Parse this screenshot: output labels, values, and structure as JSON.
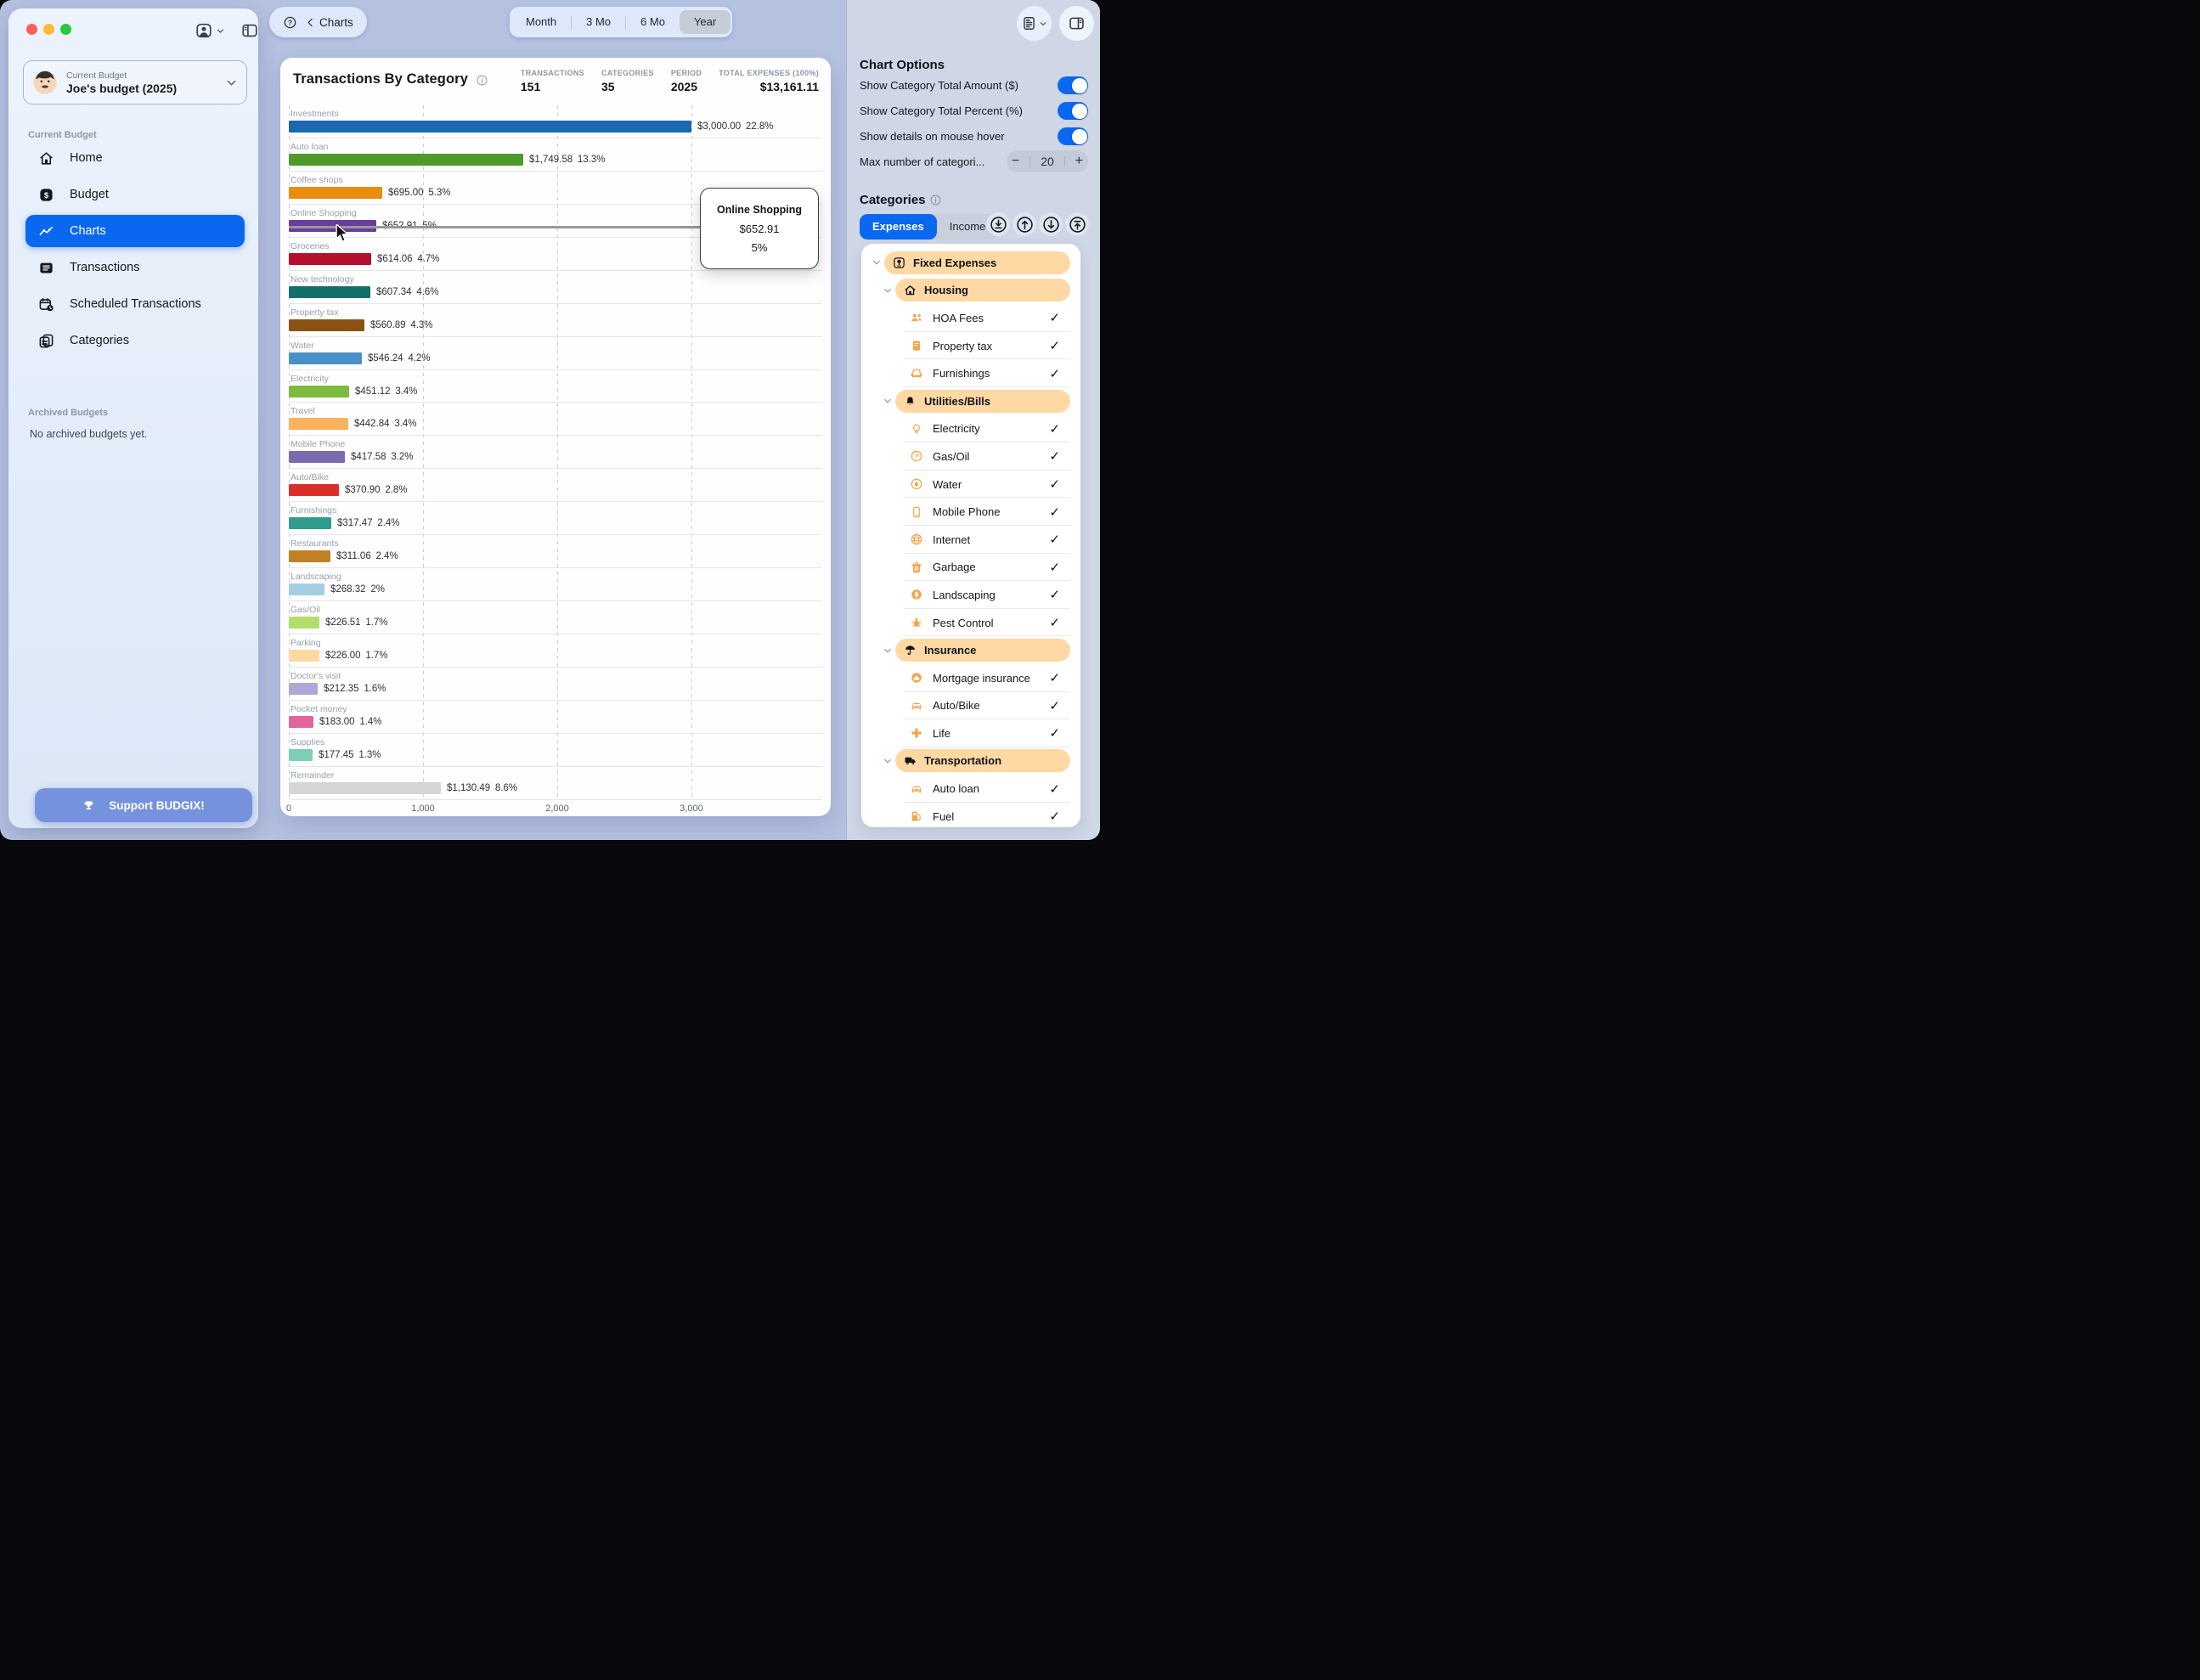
{
  "colors": {
    "accent": "#0a68f0",
    "toggle_on": "#0a68f0",
    "group_pill": "#ffd8a4",
    "leaf_icon_orange": "#f2a64d",
    "support_button": "#7492de",
    "traffic": [
      "#ff5f57",
      "#febc2e",
      "#28c840"
    ]
  },
  "sidebar": {
    "budget_card": {
      "label": "Current Budget",
      "name": "Joe's budget (2025)"
    },
    "section_label": "Current Budget",
    "nav": [
      {
        "id": "home",
        "label": "Home",
        "icon": "house",
        "active": false
      },
      {
        "id": "budget",
        "label": "Budget",
        "icon": "dollar",
        "active": false
      },
      {
        "id": "charts",
        "label": "Charts",
        "icon": "chart",
        "active": true
      },
      {
        "id": "transactions",
        "label": "Transactions",
        "icon": "list",
        "active": false
      },
      {
        "id": "scheduled-transactions",
        "label": "Scheduled Transactions",
        "icon": "calclock",
        "active": false
      },
      {
        "id": "categories",
        "label": "Categories",
        "icon": "cards",
        "active": false
      }
    ],
    "archived_label": "Archived Budgets",
    "archived_empty": "No archived budgets yet.",
    "support_label": "Support BUDGIX!"
  },
  "topbar": {
    "back_label": "Charts",
    "periods": [
      "Month",
      "3 Mo",
      "6 Mo",
      "Year"
    ],
    "selected_period": "Year"
  },
  "chart_header": {
    "title": "Transactions By Category",
    "stats": [
      {
        "label": "TRANSACTIONS",
        "value": "151"
      },
      {
        "label": "CATEGORIES",
        "value": "35"
      },
      {
        "label": "PERIOD",
        "value": "2025"
      },
      {
        "label": "TOTAL EXPENSES (100%)",
        "value": "$13,161.11"
      }
    ]
  },
  "chart_data": {
    "type": "bar",
    "orientation": "horizontal",
    "title": "Transactions By Category",
    "x_ticks": [
      "0",
      "1,000",
      "2,000",
      "3,000"
    ],
    "tick_values": [
      0,
      1000,
      2000,
      3000
    ],
    "xlim": [
      0,
      4000
    ],
    "grid": "dashed-vertical",
    "rows": [
      {
        "label": "Investments",
        "value": 3000.0,
        "amount": "$3,000.00",
        "percent": "22.8%",
        "color": "#1a68b2"
      },
      {
        "label": "Auto loan",
        "value": 1749.58,
        "amount": "$1,749.58",
        "percent": "13.3%",
        "color": "#4e9a2d"
      },
      {
        "label": "Coffee shops",
        "value": 695.0,
        "amount": "$695.00",
        "percent": "5.3%",
        "color": "#ec8c0c"
      },
      {
        "label": "Online Shopping",
        "value": 652.91,
        "amount": "$652.91",
        "percent": "5%",
        "color": "#6a3d9a"
      },
      {
        "label": "Groceries",
        "value": 614.06,
        "amount": "$614.06",
        "percent": "4.7%",
        "color": "#b5112f"
      },
      {
        "label": "New technology",
        "value": 607.34,
        "amount": "$607.34",
        "percent": "4.6%",
        "color": "#127069"
      },
      {
        "label": "Property tax",
        "value": 560.89,
        "amount": "$560.89",
        "percent": "4.3%",
        "color": "#8a5213"
      },
      {
        "label": "Water",
        "value": 546.24,
        "amount": "$546.24",
        "percent": "4.2%",
        "color": "#4a90c8"
      },
      {
        "label": "Electricity",
        "value": 451.12,
        "amount": "$451.12",
        "percent": "3.4%",
        "color": "#7cbb40"
      },
      {
        "label": "Travel",
        "value": 442.84,
        "amount": "$442.84",
        "percent": "3.4%",
        "color": "#fbb25c"
      },
      {
        "label": "Mobile Phone",
        "value": 417.58,
        "amount": "$417.58",
        "percent": "3.2%",
        "color": "#7a6ab0"
      },
      {
        "label": "Auto/Bike",
        "value": 370.9,
        "amount": "$370.90",
        "percent": "2.8%",
        "color": "#da2f29"
      },
      {
        "label": "Furnishings",
        "value": 317.47,
        "amount": "$317.47",
        "percent": "2.4%",
        "color": "#2f9c8e"
      },
      {
        "label": "Restaurants",
        "value": 311.06,
        "amount": "$311.06",
        "percent": "2.4%",
        "color": "#c08125"
      },
      {
        "label": "Landscaping",
        "value": 268.32,
        "amount": "$268.32",
        "percent": "2%",
        "color": "#a6cee3"
      },
      {
        "label": "Gas/Oil",
        "value": 226.51,
        "amount": "$226.51",
        "percent": "1.7%",
        "color": "#b2df6a"
      },
      {
        "label": "Parking",
        "value": 226.0,
        "amount": "$226.00",
        "percent": "1.7%",
        "color": "#fdd9a0"
      },
      {
        "label": "Doctor's visit",
        "value": 212.35,
        "amount": "$212.35",
        "percent": "1.6%",
        "color": "#b0a6d8"
      },
      {
        "label": "Pocket money",
        "value": 183.0,
        "amount": "$183.00",
        "percent": "1.4%",
        "color": "#e2649b"
      },
      {
        "label": "Supplies",
        "value": 177.45,
        "amount": "$177.45",
        "percent": "1.3%",
        "color": "#7ccfb6"
      },
      {
        "label": "Remainder",
        "value": 1130.49,
        "amount": "$1,130.49",
        "percent": "8.6%",
        "color": "#d5d5d5"
      }
    ],
    "hover": {
      "index": 3,
      "category": "Online Shopping",
      "amount": "$652.91",
      "percent": "5%"
    }
  },
  "right_panel": {
    "options_title": "Chart Options",
    "toggles": [
      {
        "label": "Show Category Total Amount ($)",
        "on": true
      },
      {
        "label": "Show Category Total Percent (%)",
        "on": true
      },
      {
        "label": "Show details on mouse hover",
        "on": true
      }
    ],
    "max_categories": {
      "label": "Max number of categori...",
      "value": "20"
    },
    "categories_title": "Categories",
    "tabs": [
      {
        "label": "Expenses",
        "active": true
      },
      {
        "label": "Income",
        "active": false
      }
    ],
    "tree_buttons": [
      "collapse-all",
      "move-up",
      "move-down",
      "move-to-top"
    ],
    "tree": [
      {
        "type": "group",
        "level": 1,
        "icon": "pin",
        "label": "Fixed Expenses"
      },
      {
        "type": "group",
        "level": 2,
        "icon": "housefill",
        "label": "Housing"
      },
      {
        "type": "leaf",
        "icon": "people",
        "label": "HOA Fees",
        "checked": true
      },
      {
        "type": "leaf",
        "icon": "receipt",
        "label": "Property tax",
        "checked": true
      },
      {
        "type": "leaf",
        "icon": "armchair",
        "label": "Furnishings",
        "checked": true
      },
      {
        "type": "group",
        "level": 2,
        "icon": "bell",
        "label": "Utilities/Bills"
      },
      {
        "type": "leaf",
        "icon": "bulb",
        "label": "Electricity",
        "checked": true
      },
      {
        "type": "leaf",
        "icon": "gauge",
        "label": "Gas/Oil",
        "checked": true
      },
      {
        "type": "leaf",
        "icon": "droplet",
        "label": "Water",
        "checked": true
      },
      {
        "type": "leaf",
        "icon": "phone",
        "label": "Mobile Phone",
        "checked": true
      },
      {
        "type": "leaf",
        "icon": "globe",
        "label": "Internet",
        "checked": true
      },
      {
        "type": "leaf",
        "icon": "trash",
        "label": "Garbage",
        "checked": true
      },
      {
        "type": "leaf",
        "icon": "tree",
        "label": "Landscaping",
        "checked": true
      },
      {
        "type": "leaf",
        "icon": "bug",
        "label": "Pest Control",
        "checked": true
      },
      {
        "type": "group",
        "level": 2,
        "icon": "umbrella",
        "label": "Insurance"
      },
      {
        "type": "leaf",
        "icon": "housecircle",
        "label": "Mortgage insurance",
        "checked": true
      },
      {
        "type": "leaf",
        "icon": "car",
        "label": "Auto/Bike",
        "checked": true
      },
      {
        "type": "leaf",
        "icon": "plusfill",
        "label": "Life",
        "checked": true
      },
      {
        "type": "group",
        "level": 2,
        "icon": "truck",
        "label": "Transportation"
      },
      {
        "type": "leaf",
        "icon": "car",
        "label": "Auto loan",
        "checked": true
      },
      {
        "type": "leaf",
        "icon": "fuel",
        "label": "Fuel",
        "checked": true
      }
    ]
  }
}
